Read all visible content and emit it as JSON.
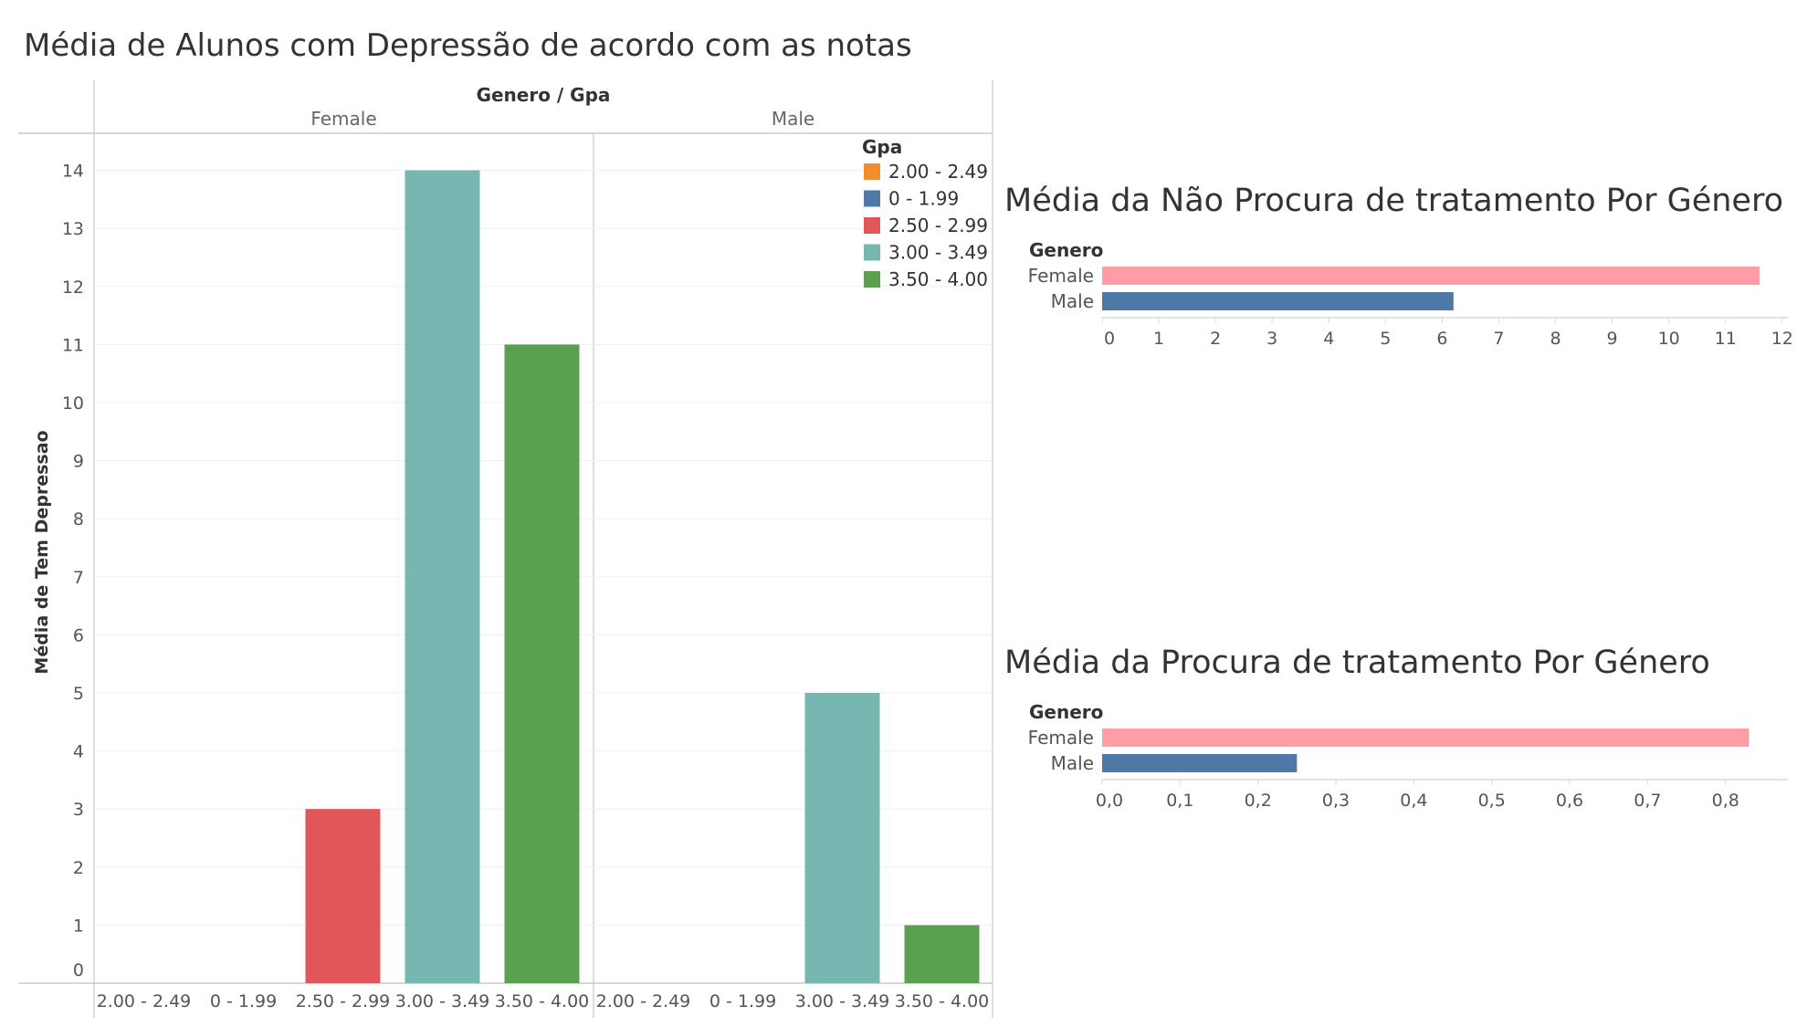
{
  "dashboard": {
    "title": "Média de Alunos com Depressão de acordo com as notas"
  },
  "chart_data": [
    {
      "type": "bar",
      "title": "Média de Alunos com Depressão de acordo com as notas",
      "column_header": "Genero  /  Gpa",
      "ylabel": "Média de Tem Depressao",
      "ylim": [
        0,
        14.5
      ],
      "yticks": [
        0,
        1,
        2,
        3,
        4,
        5,
        6,
        7,
        8,
        9,
        10,
        11,
        12,
        13,
        14
      ],
      "grid": true,
      "legend": {
        "title": "Gpa",
        "position": "top-right",
        "entries": [
          {
            "label": "2.00 - 2.49",
            "color": "#f28e2b"
          },
          {
            "label": "0 - 1.99",
            "color": "#4e79a7"
          },
          {
            "label": "2.50 - 2.99",
            "color": "#e15759"
          },
          {
            "label": "3.00 - 3.49",
            "color": "#76b7b2"
          },
          {
            "label": "3.50 - 4.00",
            "color": "#59a14f"
          }
        ]
      },
      "panels": [
        {
          "name": "Female",
          "categories": [
            "2.00 - 2.49",
            "0 - 1.99",
            "2.50 - 2.99",
            "3.00 - 3.49",
            "3.50 - 4.00"
          ],
          "values": [
            0,
            0,
            3,
            14,
            11
          ]
        },
        {
          "name": "Male",
          "categories": [
            "2.00 - 2.49",
            "0 - 1.99",
            "3.00 - 3.49",
            "3.50 - 4.00"
          ],
          "values": [
            0,
            0,
            5,
            1
          ]
        }
      ]
    },
    {
      "type": "bar",
      "orientation": "horizontal",
      "title": "Média da Não Procura de tratamento Por Género",
      "row_header": "Genero",
      "categories": [
        "Female",
        "Male"
      ],
      "values": [
        11.6,
        6.2
      ],
      "colors": [
        "#ff9da7",
        "#4e79a7"
      ],
      "xlim": [
        0,
        12.1
      ],
      "xticks": [
        "0",
        "1",
        "2",
        "3",
        "4",
        "5",
        "6",
        "7",
        "8",
        "9",
        "10",
        "11",
        "12"
      ]
    },
    {
      "type": "bar",
      "orientation": "horizontal",
      "title": "Média da Procura de tratamento Por Género",
      "row_header": "Genero",
      "categories": [
        "Female",
        "Male"
      ],
      "values": [
        0.83,
        0.25
      ],
      "colors": [
        "#ff9da7",
        "#4e79a7"
      ],
      "xlim": [
        0,
        0.88
      ],
      "xticks": [
        "0,0",
        "0,1",
        "0,2",
        "0,3",
        "0,4",
        "0,5",
        "0,6",
        "0,7",
        "0,8"
      ]
    }
  ]
}
